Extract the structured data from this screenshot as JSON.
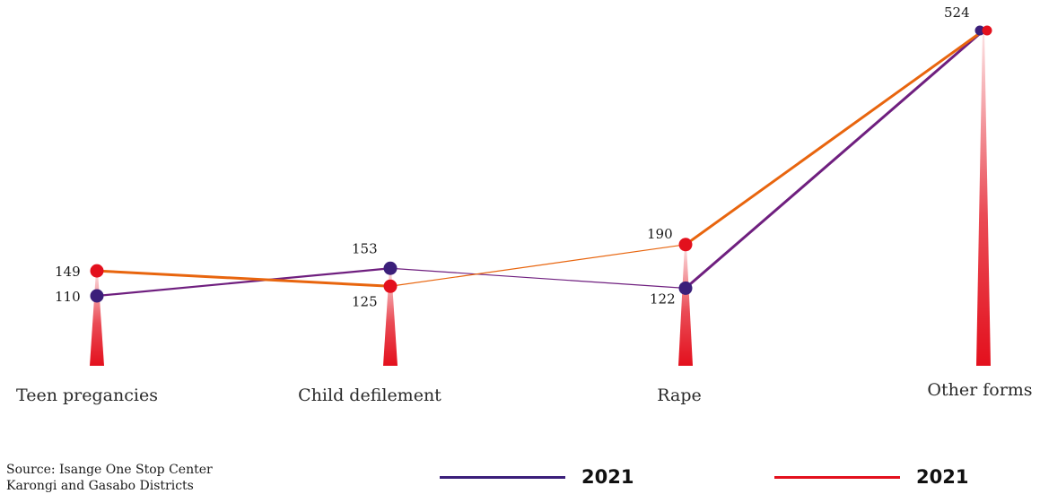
{
  "chart_data": {
    "type": "line",
    "categories": [
      "Teen pregancies",
      "Child defilement",
      "Rape",
      "Other forms"
    ],
    "series": [
      {
        "name": "2021",
        "values": [
          110,
          153,
          122,
          524
        ],
        "line_color": "#6f1f7f",
        "marker_color": "#3b1f7a"
      },
      {
        "name": "2021",
        "values": [
          149,
          125,
          190,
          524
        ],
        "line_color": "#e8650e",
        "marker_color": "#e3101d"
      }
    ],
    "ylim": [
      0,
      560
    ]
  },
  "source": {
    "line1": "Source: Isange One Stop Center",
    "line2": "Karongi and Gasabo Districts"
  },
  "legend": [
    {
      "label": "2021",
      "color": "#3b1f7a"
    },
    {
      "label": "2021",
      "color": "#e3101d"
    }
  ]
}
